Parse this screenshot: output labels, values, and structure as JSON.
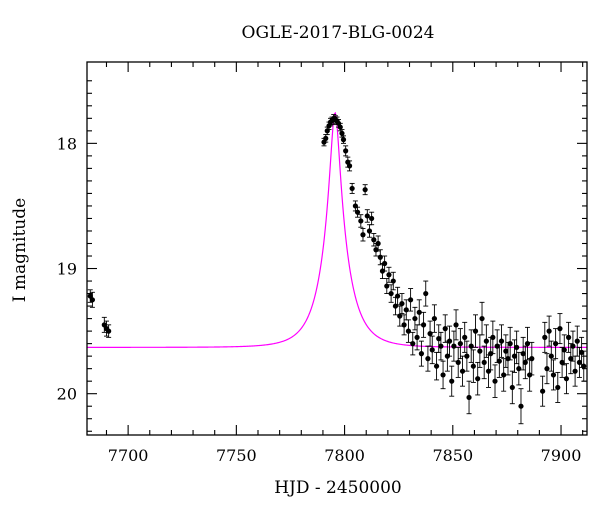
{
  "chart_data": {
    "type": "scatter",
    "title": "OGLE-2017-BLG-0024",
    "xlabel": "HJD - 2450000",
    "ylabel": "I magnitude",
    "xlim": [
      7681,
      7912
    ],
    "ylim": [
      20.33,
      17.35
    ],
    "y_inverted": true,
    "x_ticks": [
      7700,
      7750,
      7800,
      7850,
      7900
    ],
    "y_ticks": [
      18,
      19,
      20
    ],
    "grid": false,
    "model_color": "#ff00ff",
    "point_color": "#000000",
    "model": {
      "t0": 7795.6,
      "tE": 11.0,
      "u0": 0.18,
      "baseline_mag": 19.63
    },
    "series": [
      {
        "points": [
          [
            7682.5,
            19.22,
            0.05
          ],
          [
            7683.5,
            19.25,
            0.06
          ],
          [
            7689.0,
            19.45,
            0.06
          ],
          [
            7690.0,
            19.48,
            0.06
          ],
          [
            7691.0,
            19.5,
            0.05
          ],
          [
            7790.5,
            17.99,
            0.03
          ],
          [
            7791.3,
            17.96,
            0.03
          ],
          [
            7792.0,
            17.9,
            0.03
          ],
          [
            7792.8,
            17.86,
            0.03
          ],
          [
            7793.5,
            17.83,
            0.03
          ],
          [
            7794.2,
            17.82,
            0.03
          ],
          [
            7795.0,
            17.8,
            0.03
          ],
          [
            7795.8,
            17.81,
            0.03
          ],
          [
            7796.5,
            17.82,
            0.03
          ],
          [
            7797.2,
            17.84,
            0.03
          ],
          [
            7798.0,
            17.87,
            0.03
          ],
          [
            7798.8,
            17.92,
            0.03
          ],
          [
            7799.5,
            17.97,
            0.03
          ],
          [
            7800.5,
            18.06,
            0.04
          ],
          [
            7801.5,
            18.15,
            0.04
          ],
          [
            7802.3,
            18.18,
            0.04
          ],
          [
            7803.5,
            18.36,
            0.04
          ],
          [
            7805.0,
            18.5,
            0.04
          ],
          [
            7806.0,
            18.55,
            0.04
          ],
          [
            7807.5,
            18.62,
            0.05
          ],
          [
            7808.5,
            18.73,
            0.05
          ],
          [
            7809.5,
            18.37,
            0.04
          ],
          [
            7810.5,
            18.58,
            0.05
          ],
          [
            7811.5,
            18.7,
            0.05
          ],
          [
            7812.5,
            18.6,
            0.05
          ],
          [
            7813.5,
            18.77,
            0.05
          ],
          [
            7814.5,
            18.85,
            0.05
          ],
          [
            7815.5,
            18.8,
            0.06
          ],
          [
            7816.5,
            18.91,
            0.06
          ],
          [
            7817.5,
            19.02,
            0.06
          ],
          [
            7818.5,
            18.96,
            0.06
          ],
          [
            7819.5,
            19.14,
            0.06
          ],
          [
            7820.5,
            19.05,
            0.06
          ],
          [
            7821.5,
            19.2,
            0.07
          ],
          [
            7822.5,
            19.1,
            0.07
          ],
          [
            7823.5,
            19.3,
            0.07
          ],
          [
            7824.5,
            19.22,
            0.07
          ],
          [
            7825.5,
            19.38,
            0.08
          ],
          [
            7826.5,
            19.28,
            0.08
          ],
          [
            7827.5,
            19.45,
            0.08
          ],
          [
            7828.5,
            19.33,
            0.08
          ],
          [
            7829.5,
            19.5,
            0.09
          ],
          [
            7830.5,
            19.25,
            0.09
          ],
          [
            7831.5,
            19.6,
            0.09
          ],
          [
            7832.5,
            19.4,
            0.09
          ],
          [
            7833.5,
            19.55,
            0.1
          ],
          [
            7834.5,
            19.35,
            0.1
          ],
          [
            7835.5,
            19.68,
            0.1
          ],
          [
            7836.5,
            19.45,
            0.1
          ],
          [
            7837.5,
            19.2,
            0.1
          ],
          [
            7838.5,
            19.72,
            0.1
          ],
          [
            7839.5,
            19.52,
            0.1
          ],
          [
            7840.5,
            19.65,
            0.11
          ],
          [
            7841.5,
            19.4,
            0.11
          ],
          [
            7842.5,
            19.78,
            0.11
          ],
          [
            7843.5,
            19.56,
            0.11
          ],
          [
            7844.5,
            19.62,
            0.11
          ],
          [
            7845.5,
            19.85,
            0.11
          ],
          [
            7846.5,
            19.48,
            0.11
          ],
          [
            7847.5,
            19.7,
            0.12
          ],
          [
            7848.5,
            19.58,
            0.12
          ],
          [
            7849.5,
            19.9,
            0.12
          ],
          [
            7850.5,
            19.62,
            0.12
          ],
          [
            7851.5,
            19.45,
            0.12
          ],
          [
            7852.5,
            19.75,
            0.12
          ],
          [
            7853.5,
            19.6,
            0.12
          ],
          [
            7854.5,
            19.82,
            0.12
          ],
          [
            7855.5,
            19.55,
            0.12
          ],
          [
            7856.5,
            19.7,
            0.12
          ],
          [
            7857.5,
            20.03,
            0.13
          ],
          [
            7858.5,
            19.62,
            0.13
          ],
          [
            7859.5,
            19.78,
            0.13
          ],
          [
            7860.5,
            19.5,
            0.13
          ],
          [
            7861.5,
            19.88,
            0.13
          ],
          [
            7862.5,
            19.66,
            0.13
          ],
          [
            7863.5,
            19.4,
            0.13
          ],
          [
            7864.5,
            19.75,
            0.13
          ],
          [
            7865.5,
            19.58,
            0.13
          ],
          [
            7866.5,
            19.82,
            0.13
          ],
          [
            7867.5,
            19.68,
            0.13
          ],
          [
            7868.5,
            19.55,
            0.13
          ],
          [
            7869.5,
            19.9,
            0.13
          ],
          [
            7870.5,
            19.62,
            0.13
          ],
          [
            7871.5,
            19.74,
            0.13
          ],
          [
            7872.5,
            19.58,
            0.13
          ],
          [
            7873.5,
            19.85,
            0.13
          ],
          [
            7874.5,
            19.66,
            0.13
          ],
          [
            7875.5,
            19.72,
            0.13
          ],
          [
            7876.5,
            19.6,
            0.13
          ],
          [
            7877.5,
            19.95,
            0.13
          ],
          [
            7878.5,
            19.7,
            0.13
          ],
          [
            7879.5,
            19.63,
            0.13
          ],
          [
            7880.5,
            19.8,
            0.13
          ],
          [
            7881.5,
            20.1,
            0.14
          ],
          [
            7882.5,
            19.68,
            0.13
          ],
          [
            7883.5,
            19.75,
            0.13
          ],
          [
            7884.5,
            19.6,
            0.13
          ],
          [
            7885.5,
            19.85,
            0.13
          ],
          [
            7886.5,
            19.72,
            0.13
          ],
          [
            7891.5,
            19.98,
            0.12
          ],
          [
            7892.5,
            19.55,
            0.12
          ],
          [
            7893.5,
            19.8,
            0.12
          ],
          [
            7894.5,
            19.5,
            0.12
          ],
          [
            7895.5,
            19.7,
            0.12
          ],
          [
            7896.5,
            19.85,
            0.12
          ],
          [
            7897.5,
            19.6,
            0.12
          ],
          [
            7898.5,
            19.95,
            0.12
          ],
          [
            7899.5,
            19.48,
            0.12
          ],
          [
            7900.5,
            19.75,
            0.12
          ],
          [
            7901.5,
            19.65,
            0.12
          ],
          [
            7902.5,
            19.88,
            0.12
          ],
          [
            7903.5,
            19.55,
            0.12
          ],
          [
            7904.5,
            19.72,
            0.12
          ],
          [
            7905.5,
            19.62,
            0.12
          ],
          [
            7906.5,
            19.82,
            0.12
          ],
          [
            7907.5,
            19.58,
            0.12
          ],
          [
            7908.5,
            19.75,
            0.12
          ],
          [
            7909.5,
            19.67,
            0.12
          ],
          [
            7910.5,
            19.78,
            0.12
          ]
        ]
      }
    ]
  }
}
